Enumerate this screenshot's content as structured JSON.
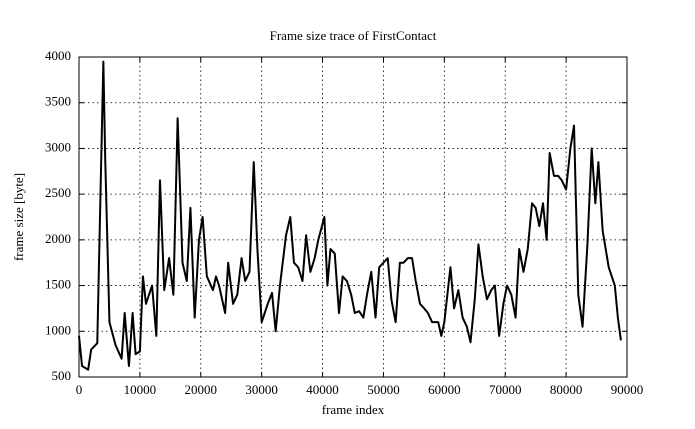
{
  "chart_data": {
    "type": "line",
    "title": "Frame size trace of FirstContact",
    "x_label": "frame index",
    "y_label": "frame size [byte]",
    "x": [
      0,
      500,
      1500,
      2000,
      3000,
      4000,
      4300,
      5000,
      6000,
      7000,
      7500,
      8200,
      8800,
      9300,
      10000,
      10500,
      11000,
      12000,
      12700,
      13300,
      14000,
      14800,
      15500,
      16200,
      17000,
      17700,
      18300,
      19000,
      19700,
      20300,
      21000,
      22000,
      22500,
      23000,
      24000,
      24500,
      25300,
      26000,
      26700,
      27300,
      28000,
      28700,
      29300,
      30000,
      31000,
      31700,
      32300,
      33000,
      34000,
      34700,
      35300,
      36000,
      36700,
      37300,
      38000,
      38700,
      39300,
      40300,
      40800,
      41300,
      42000,
      42700,
      43300,
      44000,
      44700,
      45300,
      46000,
      46700,
      47300,
      48000,
      48700,
      49300,
      50000,
      50700,
      51300,
      52000,
      52700,
      53300,
      54000,
      54700,
      55300,
      56000,
      56700,
      57300,
      58000,
      59000,
      59500,
      60000,
      61000,
      61600,
      62300,
      63000,
      63700,
      64300,
      65000,
      65600,
      66300,
      67000,
      67700,
      68300,
      69000,
      69700,
      70300,
      71000,
      71700,
      72300,
      73000,
      73700,
      74400,
      75000,
      75600,
      76200,
      76800,
      77300,
      78000,
      78700,
      79300,
      80000,
      80700,
      81300,
      82000,
      82700,
      83500,
      84200,
      84800,
      85300,
      86000,
      87000,
      88000,
      88500,
      89000
    ],
    "series": [
      {
        "name": "FirstContact",
        "color": "#000000",
        "values": [
          950,
          620,
          580,
          800,
          870,
          3950,
          2900,
          1100,
          850,
          700,
          1200,
          620,
          1200,
          750,
          780,
          1600,
          1300,
          1500,
          950,
          2650,
          1450,
          1800,
          1400,
          3330,
          1750,
          1550,
          2350,
          1150,
          2000,
          2250,
          1600,
          1450,
          1600,
          1500,
          1200,
          1750,
          1300,
          1400,
          1800,
          1550,
          1650,
          2850,
          1900,
          1100,
          1300,
          1420,
          1000,
          1500,
          2050,
          2250,
          1750,
          1700,
          1550,
          2050,
          1650,
          1800,
          2000,
          2250,
          1500,
          1900,
          1850,
          1200,
          1600,
          1550,
          1400,
          1200,
          1220,
          1150,
          1400,
          1650,
          1150,
          1700,
          1750,
          1800,
          1350,
          1100,
          1750,
          1750,
          1800,
          1800,
          1550,
          1300,
          1250,
          1200,
          1100,
          1100,
          950,
          1100,
          1700,
          1250,
          1450,
          1150,
          1050,
          880,
          1350,
          1950,
          1600,
          1350,
          1450,
          1500,
          950,
          1300,
          1500,
          1400,
          1150,
          1900,
          1650,
          1900,
          2400,
          2350,
          2150,
          2400,
          2000,
          2950,
          2700,
          2700,
          2650,
          2550,
          3000,
          3250,
          1400,
          1050,
          1950,
          3000,
          2400,
          2850,
          2100,
          1700,
          1500,
          1150,
          900
        ]
      }
    ],
    "xlim": [
      0,
      90000
    ],
    "ylim": [
      500,
      4000
    ],
    "xticks": [
      0,
      10000,
      20000,
      30000,
      40000,
      50000,
      60000,
      70000,
      80000,
      90000
    ],
    "yticks": [
      500,
      1000,
      1500,
      2000,
      2500,
      3000,
      3500,
      4000
    ],
    "grid": true
  }
}
